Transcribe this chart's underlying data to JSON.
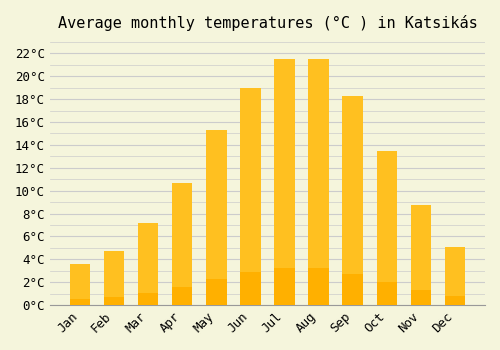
{
  "title": "Average monthly temperatures (°C ) in Katsikás",
  "months": [
    "Jan",
    "Feb",
    "Mar",
    "Apr",
    "May",
    "Jun",
    "Jul",
    "Aug",
    "Sep",
    "Oct",
    "Nov",
    "Dec"
  ],
  "values": [
    3.6,
    4.7,
    7.2,
    10.7,
    15.3,
    19.0,
    21.5,
    21.5,
    18.3,
    13.5,
    8.7,
    5.1
  ],
  "bar_color_top": "#FFC020",
  "bar_color_bottom": "#FFB000",
  "background_color": "#F5F5DC",
  "grid_color": "#CCCCCC",
  "ylim": [
    0,
    23
  ],
  "ytick_step": 2,
  "title_fontsize": 11,
  "tick_fontsize": 9,
  "font_family": "monospace"
}
